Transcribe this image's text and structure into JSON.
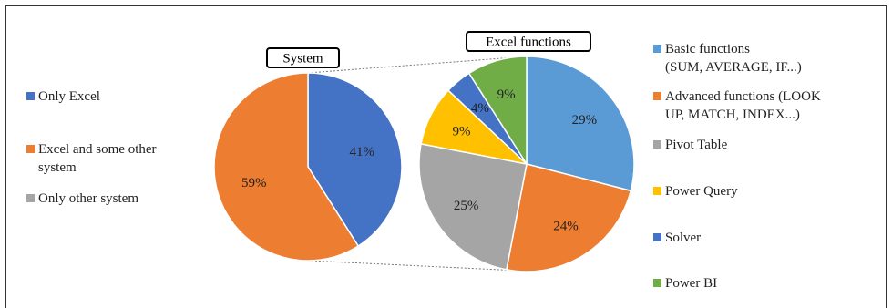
{
  "chart_data": [
    {
      "type": "pie",
      "title": "System",
      "categories": [
        "Only Excel",
        "Excel and some other system",
        "Only other system"
      ],
      "values": [
        41,
        59,
        0
      ],
      "labels": [
        "41%",
        "59%",
        ""
      ],
      "colors": [
        "#4472C4",
        "#ED7D31",
        "#A5A5A5"
      ],
      "legend_lines": [
        [
          "Only Excel"
        ],
        [
          "Excel and some other",
          "system"
        ],
        [
          "Only other system"
        ]
      ],
      "legend": "left"
    },
    {
      "type": "pie",
      "title": "Excel functions",
      "categories": [
        "Basic functions (SUM, AVERAGE, IF...)",
        "Advanced functions (LOOK UP, MATCH, INDEX...)",
        "Pivot Table",
        "Power Query",
        "Solver",
        "Power BI"
      ],
      "values": [
        29,
        24,
        25,
        9,
        4,
        9
      ],
      "labels": [
        "29%",
        "24%",
        "25%",
        "9%",
        "4%",
        "9%"
      ],
      "colors": [
        "#5B9BD5",
        "#ED7D31",
        "#A5A5A5",
        "#FFC000",
        "#4472C4",
        "#70AD47"
      ],
      "legend_lines": [
        [
          "Basic functions",
          "(SUM, AVERAGE, IF...)"
        ],
        [
          "Advanced functions (LOOK",
          "UP, MATCH, INDEX...)"
        ],
        [
          "Pivot Table"
        ],
        [
          "Power Query"
        ],
        [
          "Solver"
        ],
        [
          "Power BI"
        ]
      ],
      "legend": "right"
    }
  ]
}
